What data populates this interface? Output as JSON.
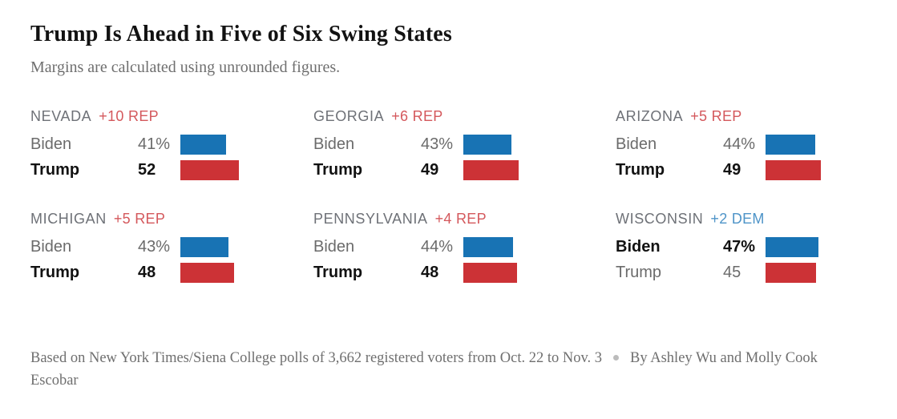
{
  "title": "Trump Is Ahead in Five of Six Swing States",
  "subtitle": "Margins are calculated using unrounded figures.",
  "colors": {
    "dem_bar": "#1873b4",
    "rep_bar": "#cc3236",
    "dem_margin_label": "#4e94c8",
    "rep_margin_label": "#d4585c"
  },
  "chart_data": {
    "type": "bar",
    "orientation": "horizontal",
    "unit": "percent of registered voters",
    "value_axis_range": [
      0,
      100
    ],
    "grid": false,
    "legend": false,
    "states": [
      {
        "name": "NEVADA",
        "margin": "+10 REP",
        "margin_party": "rep",
        "rows": [
          {
            "candidate": "Biden",
            "value": 41,
            "display": "41%",
            "party": "dem",
            "leading": false
          },
          {
            "candidate": "Trump",
            "value": 52,
            "display": "52",
            "party": "rep",
            "leading": true
          }
        ]
      },
      {
        "name": "GEORGIA",
        "margin": "+6 REP",
        "margin_party": "rep",
        "rows": [
          {
            "candidate": "Biden",
            "value": 43,
            "display": "43%",
            "party": "dem",
            "leading": false
          },
          {
            "candidate": "Trump",
            "value": 49,
            "display": "49",
            "party": "rep",
            "leading": true
          }
        ]
      },
      {
        "name": "ARIZONA",
        "margin": "+5 REP",
        "margin_party": "rep",
        "rows": [
          {
            "candidate": "Biden",
            "value": 44,
            "display": "44%",
            "party": "dem",
            "leading": false
          },
          {
            "candidate": "Trump",
            "value": 49,
            "display": "49",
            "party": "rep",
            "leading": true
          }
        ]
      },
      {
        "name": "MICHIGAN",
        "margin": "+5 REP",
        "margin_party": "rep",
        "rows": [
          {
            "candidate": "Biden",
            "value": 43,
            "display": "43%",
            "party": "dem",
            "leading": false
          },
          {
            "candidate": "Trump",
            "value": 48,
            "display": "48",
            "party": "rep",
            "leading": true
          }
        ]
      },
      {
        "name": "PENNSYLVANIA",
        "margin": "+4 REP",
        "margin_party": "rep",
        "rows": [
          {
            "candidate": "Biden",
            "value": 44,
            "display": "44%",
            "party": "dem",
            "leading": false
          },
          {
            "candidate": "Trump",
            "value": 48,
            "display": "48",
            "party": "rep",
            "leading": true
          }
        ]
      },
      {
        "name": "WISCONSIN",
        "margin": "+2 DEM",
        "margin_party": "dem",
        "rows": [
          {
            "candidate": "Biden",
            "value": 47,
            "display": "47%",
            "party": "dem",
            "leading": true
          },
          {
            "candidate": "Trump",
            "value": 45,
            "display": "45",
            "party": "rep",
            "leading": false
          }
        ]
      }
    ]
  },
  "footer": {
    "source": "Based on New York Times/Siena College polls of 3,662 registered voters from Oct. 22 to Nov. 3",
    "byline": "By Ashley Wu and Molly Cook Escobar"
  }
}
